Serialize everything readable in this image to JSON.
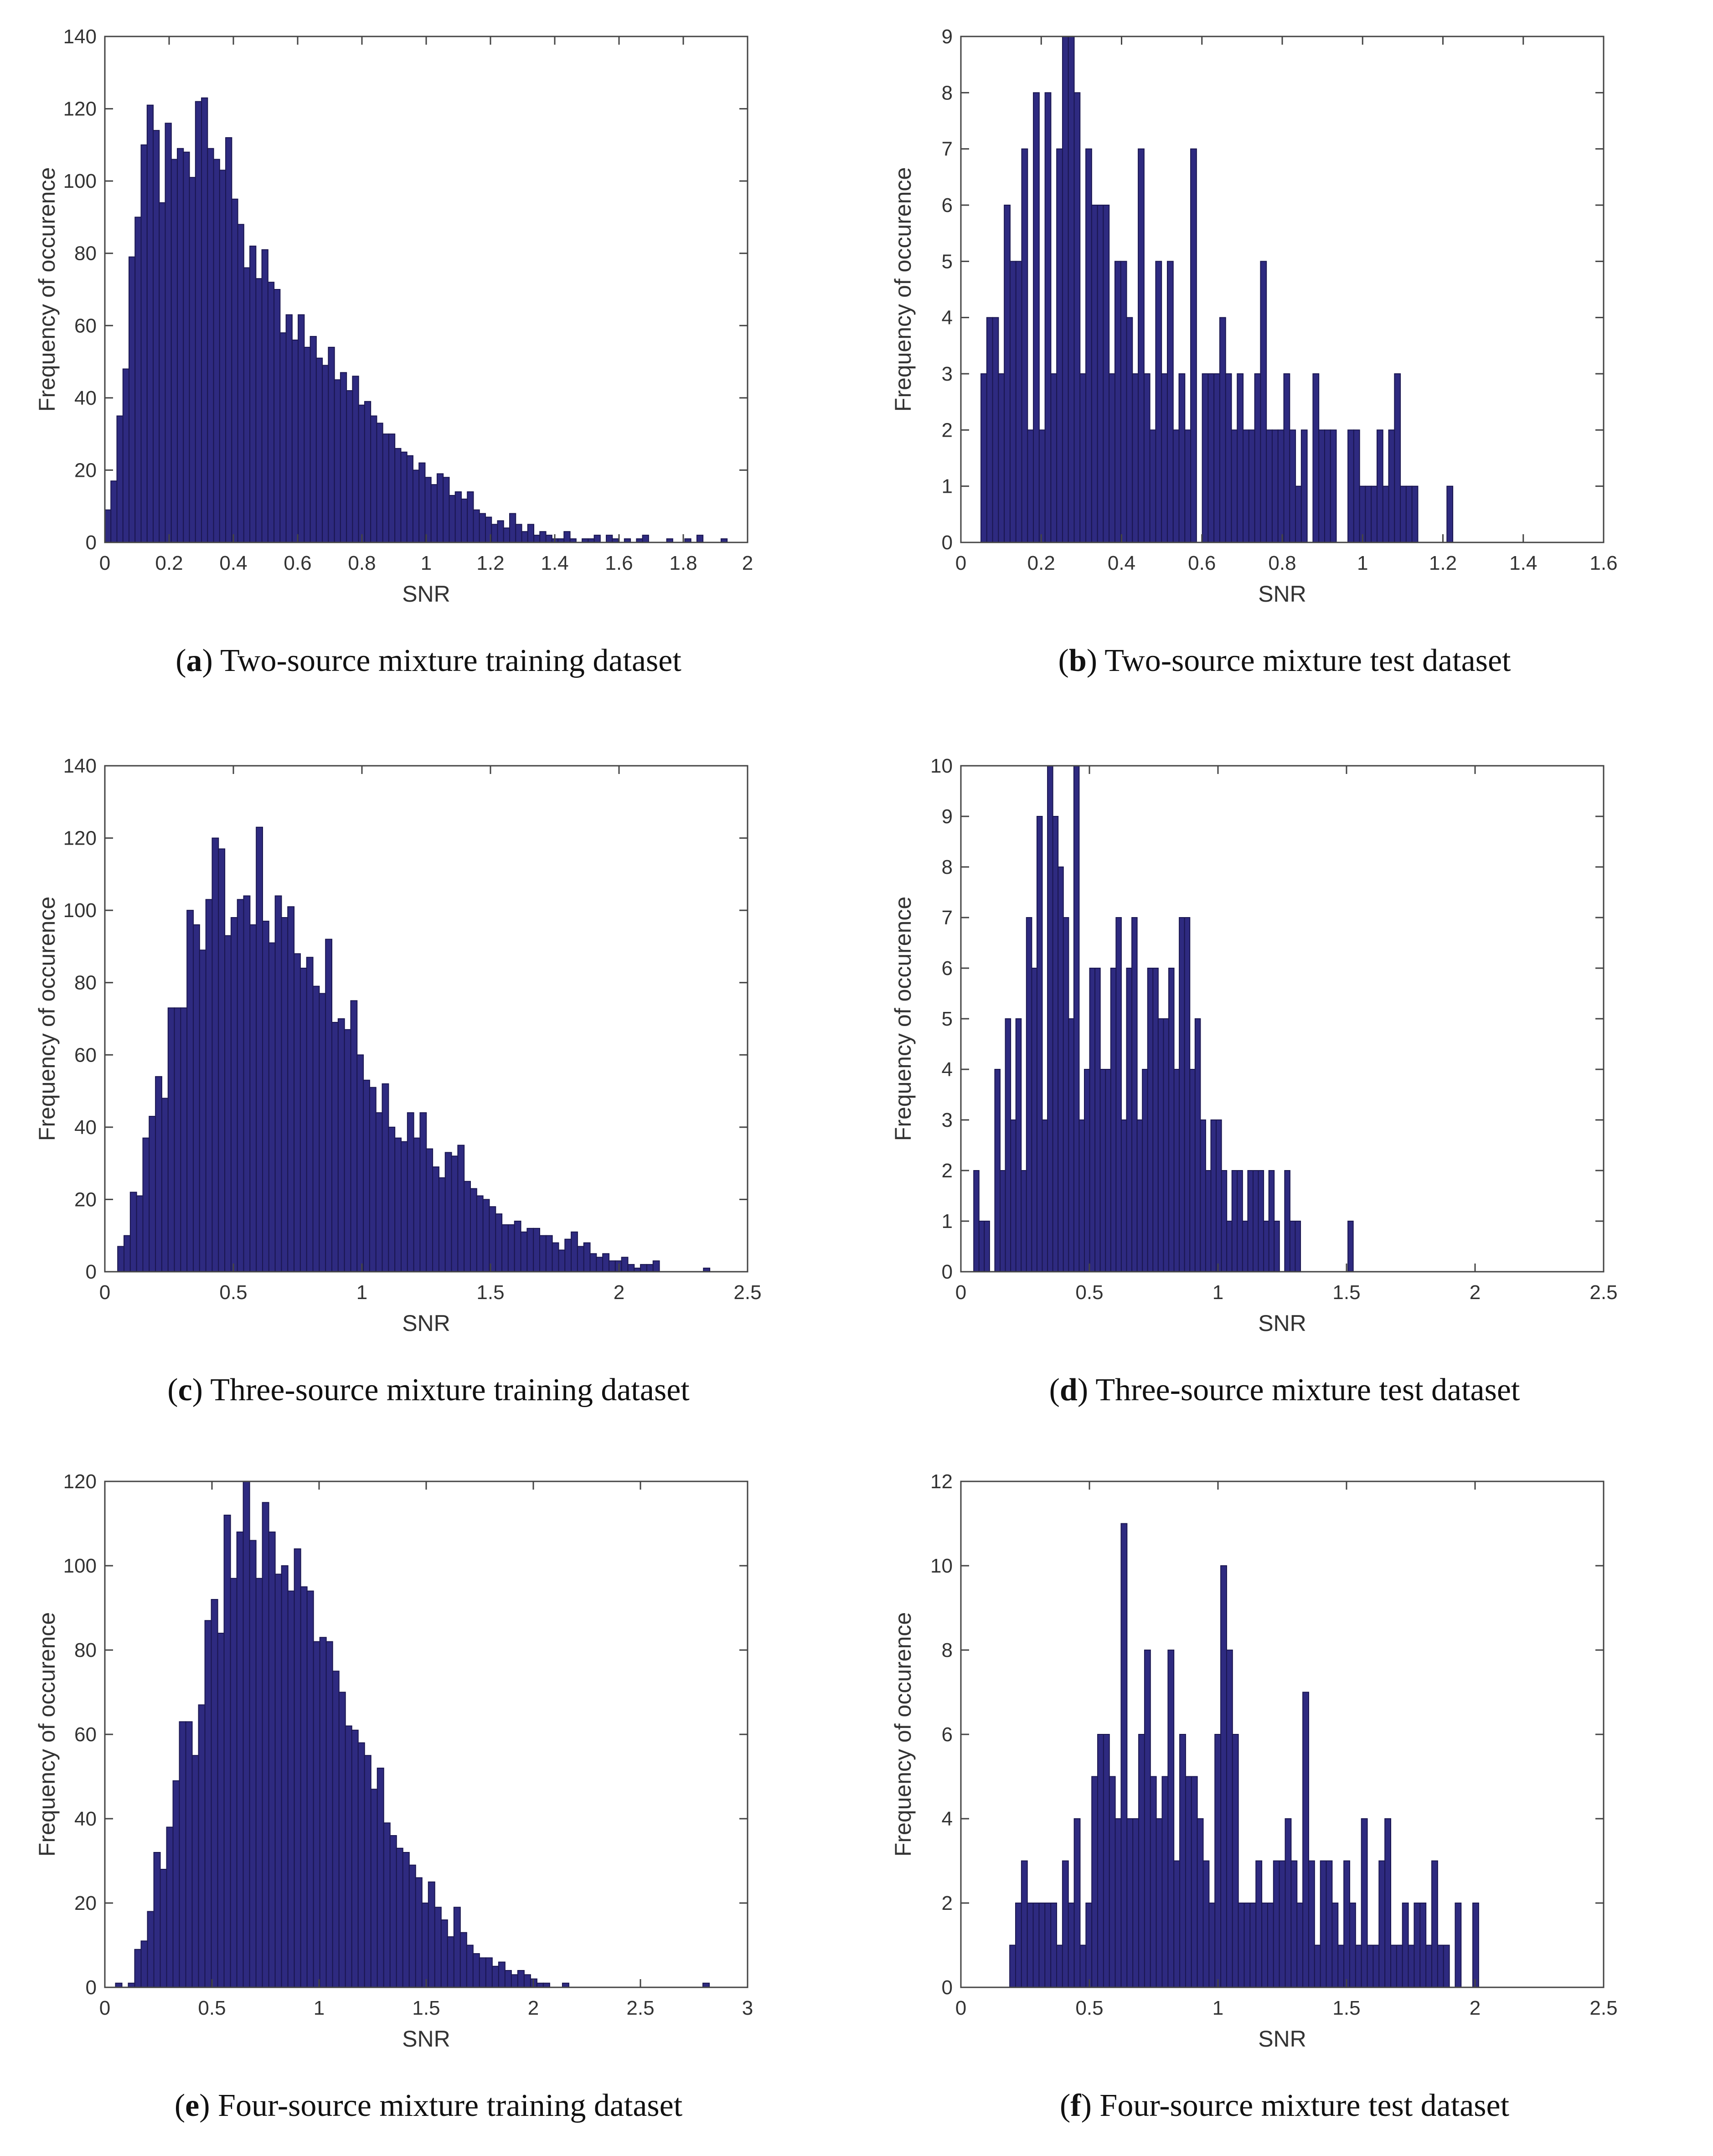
{
  "colors": {
    "bar_fill": "#2e2a80",
    "bar_edge": "#1a1650",
    "axis": "#444444"
  },
  "chart_data": [
    {
      "id": "a",
      "type": "bar",
      "caption_letter": "a",
      "caption_text": "Two-source mixture training dataset",
      "xlabel": "SNR",
      "ylabel": "Frequency of occurence",
      "xlim": [
        0,
        2
      ],
      "ylim": [
        0,
        140
      ],
      "xticks": [
        0,
        0.2,
        0.4,
        0.6,
        0.8,
        1,
        1.2,
        1.4,
        1.6,
        1.8,
        2
      ],
      "xtick_labels": [
        "0",
        "0.2",
        "0.4",
        "0.6",
        "0.8",
        "1",
        "1.2",
        "1.4",
        "1.6",
        "1.8",
        "2"
      ],
      "yticks": [
        0,
        20,
        40,
        60,
        80,
        100,
        120,
        140
      ],
      "ytick_labels": [
        "0",
        "20",
        "40",
        "60",
        "80",
        "100",
        "120",
        "140"
      ],
      "bin_start": 0.0,
      "bin_width": 0.0188,
      "values": [
        9,
        17,
        35,
        48,
        79,
        90,
        110,
        121,
        114,
        94,
        116,
        106,
        109,
        108,
        101,
        122,
        123,
        109,
        106,
        103,
        112,
        95,
        88,
        76,
        82,
        73,
        81,
        72,
        70,
        58,
        63,
        56,
        63,
        54,
        57,
        51,
        49,
        54,
        45,
        47,
        42,
        46,
        38,
        39,
        35,
        33,
        30,
        30,
        26,
        25,
        24,
        20,
        22,
        18,
        16,
        19,
        18,
        13,
        14,
        12,
        14,
        9,
        8,
        7,
        5,
        6,
        4,
        8,
        5,
        3,
        5,
        2,
        3,
        2,
        1,
        1,
        3,
        1,
        0,
        1,
        1,
        2,
        0,
        2,
        1,
        0,
        1,
        0,
        1,
        2,
        0,
        0,
        0,
        1,
        0,
        0,
        1,
        0,
        2,
        0,
        0,
        0,
        1,
        0,
        0,
        0
      ]
    },
    {
      "id": "b",
      "type": "bar",
      "caption_letter": "b",
      "caption_text": "Two-source mixture test dataset",
      "xlabel": "SNR",
      "ylabel": "Frequency of occurence",
      "xlim": [
        0,
        1.6
      ],
      "ylim": [
        0,
        9
      ],
      "xticks": [
        0,
        0.2,
        0.4,
        0.6,
        0.8,
        1,
        1.2,
        1.4,
        1.6
      ],
      "xtick_labels": [
        "0",
        "0.2",
        "0.4",
        "0.6",
        "0.8",
        "1",
        "1.2",
        "1.4",
        "1.6"
      ],
      "yticks": [
        0,
        1,
        2,
        3,
        4,
        5,
        6,
        7,
        8,
        9
      ],
      "ytick_labels": [
        "0",
        "1",
        "2",
        "3",
        "4",
        "5",
        "6",
        "7",
        "8",
        "9"
      ],
      "bin_start": 0.05,
      "bin_width": 0.0145,
      "values": [
        3,
        4,
        4,
        3,
        6,
        5,
        5,
        7,
        2,
        8,
        2,
        8,
        3,
        7,
        9,
        9,
        8,
        3,
        7,
        6,
        6,
        6,
        3,
        5,
        5,
        4,
        3,
        7,
        3,
        2,
        5,
        3,
        5,
        2,
        3,
        2,
        7,
        0,
        3,
        3,
        3,
        4,
        3,
        2,
        3,
        2,
        2,
        3,
        5,
        2,
        2,
        2,
        3,
        2,
        1,
        2,
        0,
        3,
        2,
        2,
        2,
        0,
        0,
        2,
        2,
        1,
        1,
        1,
        2,
        1,
        2,
        3,
        1,
        1,
        1,
        0,
        0,
        0,
        0,
        0,
        1
      ]
    },
    {
      "id": "c",
      "type": "bar",
      "caption_letter": "c",
      "caption_text": "Three-source mixture training dataset",
      "xlabel": "SNR",
      "ylabel": "Frequency of occurence",
      "xlim": [
        0,
        2.5
      ],
      "ylim": [
        0,
        140
      ],
      "xticks": [
        0,
        0.5,
        1,
        1.5,
        2,
        2.5
      ],
      "xtick_labels": [
        "0",
        "0.5",
        "1",
        "1.5",
        "2",
        "2.5"
      ],
      "yticks": [
        0,
        20,
        40,
        60,
        80,
        100,
        120,
        140
      ],
      "ytick_labels": [
        "0",
        "20",
        "40",
        "60",
        "80",
        "100",
        "120",
        "140"
      ],
      "bin_start": 0.05,
      "bin_width": 0.0245,
      "values": [
        7,
        10,
        22,
        21,
        37,
        43,
        54,
        48,
        73,
        73,
        73,
        100,
        96,
        89,
        103,
        120,
        117,
        93,
        98,
        103,
        104,
        96,
        123,
        97,
        91,
        104,
        98,
        101,
        88,
        84,
        87,
        79,
        77,
        92,
        69,
        70,
        67,
        75,
        60,
        53,
        51,
        44,
        52,
        40,
        37,
        36,
        44,
        37,
        44,
        34,
        29,
        26,
        33,
        32,
        35,
        25,
        23,
        21,
        20,
        18,
        16,
        13,
        13,
        14,
        11,
        12,
        12,
        10,
        10,
        8,
        6,
        9,
        11,
        7,
        8,
        5,
        4,
        5,
        3,
        3,
        4,
        2,
        1,
        2,
        2,
        3,
        0,
        0,
        0,
        0,
        0,
        0,
        0,
        1
      ]
    },
    {
      "id": "d",
      "type": "bar",
      "caption_letter": "d",
      "caption_text": "Three-source mixture test dataset",
      "xlabel": "SNR",
      "ylabel": "Frequency of occurence",
      "xlim": [
        0,
        2.5
      ],
      "ylim": [
        0,
        10
      ],
      "xticks": [
        0,
        0.5,
        1,
        1.5,
        2,
        2.5
      ],
      "xtick_labels": [
        "0",
        "0.5",
        "1",
        "1.5",
        "2",
        "2.5"
      ],
      "yticks": [
        0,
        1,
        2,
        3,
        4,
        5,
        6,
        7,
        8,
        9,
        10
      ],
      "ytick_labels": [
        "0",
        "1",
        "2",
        "3",
        "4",
        "5",
        "6",
        "7",
        "8",
        "9",
        "10"
      ],
      "bin_start": 0.05,
      "bin_width": 0.0205,
      "values": [
        2,
        1,
        1,
        0,
        4,
        2,
        5,
        3,
        5,
        2,
        7,
        6,
        9,
        3,
        10,
        9,
        8,
        7,
        5,
        10,
        3,
        4,
        6,
        6,
        4,
        4,
        6,
        7,
        3,
        6,
        7,
        3,
        4,
        6,
        6,
        5,
        5,
        6,
        4,
        7,
        7,
        4,
        5,
        3,
        2,
        3,
        3,
        2,
        1,
        2,
        2,
        1,
        2,
        2,
        2,
        1,
        2,
        1,
        0,
        2,
        1,
        1,
        0,
        0,
        0,
        0,
        0,
        0,
        0,
        0,
        0,
        1
      ]
    },
    {
      "id": "e",
      "type": "bar",
      "caption_letter": "e",
      "caption_text": "Four-source mixture training dataset",
      "xlabel": "SNR",
      "ylabel": "Frequency of occurence",
      "xlim": [
        0,
        3
      ],
      "ylim": [
        0,
        120
      ],
      "xticks": [
        0,
        0.5,
        1,
        1.5,
        2,
        2.5,
        3
      ],
      "xtick_labels": [
        "0",
        "0.5",
        "1",
        "1.5",
        "2",
        "2.5",
        "3"
      ],
      "yticks": [
        0,
        20,
        40,
        60,
        80,
        100,
        120
      ],
      "ytick_labels": [
        "0",
        "20",
        "40",
        "60",
        "80",
        "100",
        "120"
      ],
      "bin_start": 0.05,
      "bin_width": 0.0298,
      "values": [
        1,
        0,
        1,
        9,
        11,
        18,
        32,
        28,
        38,
        49,
        63,
        63,
        55,
        67,
        87,
        92,
        84,
        112,
        97,
        108,
        120,
        106,
        97,
        115,
        108,
        98,
        100,
        94,
        104,
        95,
        94,
        82,
        83,
        82,
        75,
        70,
        62,
        61,
        58,
        55,
        47,
        52,
        39,
        36,
        33,
        32,
        29,
        26,
        20,
        25,
        19,
        16,
        12,
        19,
        13,
        10,
        8,
        7,
        7,
        5,
        6,
        4,
        3,
        4,
        3,
        2,
        1,
        1,
        0,
        0,
        1,
        0,
        0,
        0,
        0,
        0,
        0,
        0,
        0,
        0,
        0,
        0,
        0,
        0,
        0,
        0,
        0,
        0,
        0,
        0,
        0,
        0,
        1
      ]
    },
    {
      "id": "f",
      "type": "bar",
      "caption_letter": "f",
      "caption_text": "Four-source mixture test dataset",
      "xlabel": "SNR",
      "ylabel": "Frequency of occurence",
      "xlim": [
        0,
        2.5
      ],
      "ylim": [
        0,
        12
      ],
      "xticks": [
        0,
        0.5,
        1,
        1.5,
        2,
        2.5
      ],
      "xtick_labels": [
        "0",
        "0.5",
        "1",
        "1.5",
        "2",
        "2.5"
      ],
      "yticks": [
        0,
        2,
        4,
        6,
        8,
        10,
        12
      ],
      "ytick_labels": [
        "0",
        "2",
        "4",
        "6",
        "8",
        "10",
        "12"
      ],
      "bin_start": 0.19,
      "bin_width": 0.0228,
      "values": [
        1,
        2,
        3,
        2,
        2,
        2,
        2,
        2,
        1,
        3,
        2,
        4,
        1,
        2,
        5,
        6,
        6,
        5,
        4,
        11,
        4,
        4,
        6,
        8,
        5,
        4,
        5,
        8,
        3,
        6,
        5,
        5,
        4,
        3,
        2,
        6,
        10,
        8,
        6,
        2,
        2,
        2,
        3,
        2,
        2,
        3,
        3,
        4,
        3,
        2,
        7,
        3,
        1,
        3,
        3,
        2,
        1,
        3,
        2,
        1,
        4,
        1,
        1,
        3,
        4,
        1,
        1,
        2,
        1,
        2,
        2,
        1,
        3,
        1,
        1,
        0,
        2,
        0,
        0,
        2
      ]
    }
  ]
}
